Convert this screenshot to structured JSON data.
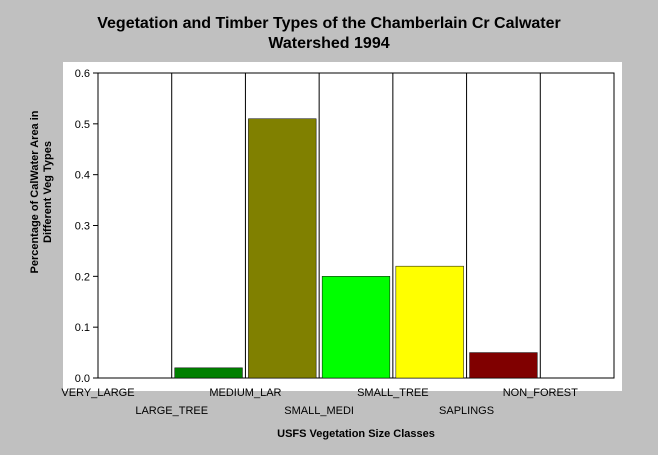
{
  "chart_data": {
    "type": "bar",
    "title_lines": [
      "Vegetation and Timber Types of the Chamberlain Cr Calwater",
      "Watershed 1994"
    ],
    "xlabel": "USFS Vegetation Size Classes",
    "ylabel_lines": [
      "Percentage of CalWater Area in",
      "Different Veg Types"
    ],
    "categories": [
      "VERY_LARGE",
      "LARGE_TREE",
      "MEDIUM_LAR",
      "SMALL_MEDI",
      "SMALL_TREE",
      "SAPLINGS",
      "NON_FOREST"
    ],
    "values": [
      0,
      0.02,
      0.51,
      0.2,
      0.22,
      0.05,
      0
    ],
    "colors": [
      "#008000",
      "#008000",
      "#808000",
      "#00ff00",
      "#ffff00",
      "#800000",
      "#808080"
    ],
    "ylim": [
      0,
      0.6
    ],
    "yticks": [
      0,
      0.1,
      0.2,
      0.3,
      0.4,
      0.5,
      0.6
    ],
    "ytick_labels": [
      "0.0",
      "0.1",
      "0.2",
      "0.3",
      "0.4",
      "0.5",
      "0.6"
    ],
    "grid": "vertical",
    "legend": "none"
  }
}
